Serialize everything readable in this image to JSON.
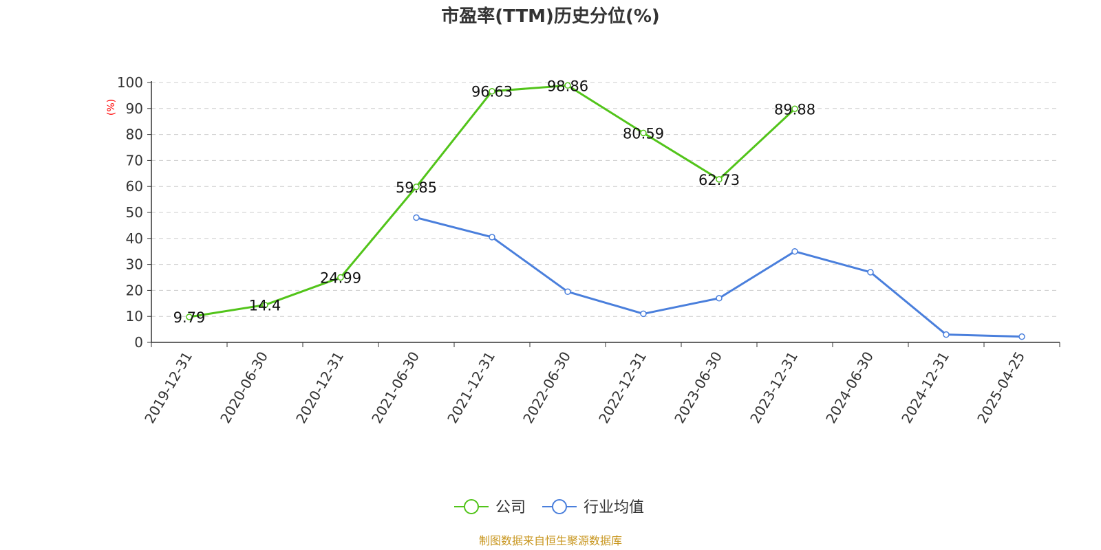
{
  "colors": {
    "company": "#52c41a",
    "industry": "#4a7fdc",
    "unit": "#ff0000",
    "source": "#c8961e",
    "grid": "#cccccc",
    "axis": "#333333"
  },
  "chart_data": {
    "type": "line",
    "title": "市盈率(TTM)历史分位(%)",
    "ylabel": "(%)",
    "ylim": [
      0,
      100
    ],
    "yticks": [
      0,
      10,
      20,
      30,
      40,
      50,
      60,
      70,
      80,
      90,
      100
    ],
    "grid": true,
    "legend_position": "bottom-center",
    "categories": [
      "2019-12-31",
      "2020-06-30",
      "2020-12-31",
      "2021-06-30",
      "2021-12-31",
      "2022-06-30",
      "2022-12-31",
      "2023-06-30",
      "2023-12-31",
      "2024-06-30",
      "2024-12-31",
      "2025-04-25"
    ],
    "series": [
      {
        "name": "公司",
        "color": "#52c41a",
        "values": [
          9.79,
          14.4,
          24.99,
          59.85,
          96.63,
          98.86,
          80.59,
          62.73,
          89.88,
          null,
          null,
          null
        ],
        "labels": [
          "9.79",
          "14.4",
          "24.99",
          "59.85",
          "96.63",
          "98.86",
          "80.59",
          "62.73",
          "89.88",
          null,
          null,
          null
        ]
      },
      {
        "name": "行业均值",
        "color": "#4a7fdc",
        "values": [
          null,
          null,
          null,
          48.0,
          40.5,
          19.5,
          11.0,
          17.0,
          35.0,
          27.0,
          3.0,
          2.2
        ],
        "labels": null
      }
    ]
  },
  "source": "制图数据来自恒生聚源数据库"
}
